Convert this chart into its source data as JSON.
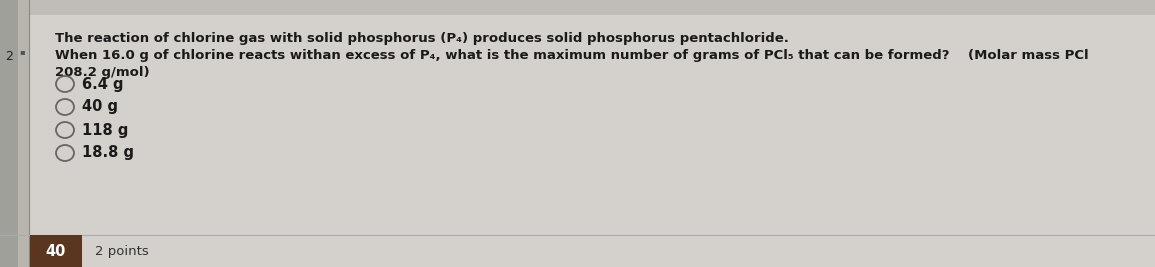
{
  "background_color": "#d4d0cb",
  "left_bar_color": "#b8b4ae",
  "left_bar2_color": "#c8c4be",
  "question_number": "2",
  "dot_text": "▪",
  "line1": "The reaction of chlorine gas with solid phosphorus (P₄) produces solid phosphorus pentachloride.",
  "line2": "When 16.0 g of chlorine reacts withan excess of P₄, what is the maximum number of grams of PCl₅ that can be formed?    (Molar mass PCl",
  "line3": "208.2 g/mol)",
  "options": [
    "6.4 g",
    "40 g",
    "118 g",
    "18.8 g"
  ],
  "bottom_label_text": "40",
  "bottom_label_subtext": "2 points",
  "bottom_bg_color": "#5a3520",
  "bottom_text_color": "#ffffff",
  "text_color": "#1a1a1a",
  "font_size_main": 9.5,
  "font_size_options": 10.5,
  "font_size_bottom_num": 10.5,
  "font_size_bottom_sub": 9.5
}
